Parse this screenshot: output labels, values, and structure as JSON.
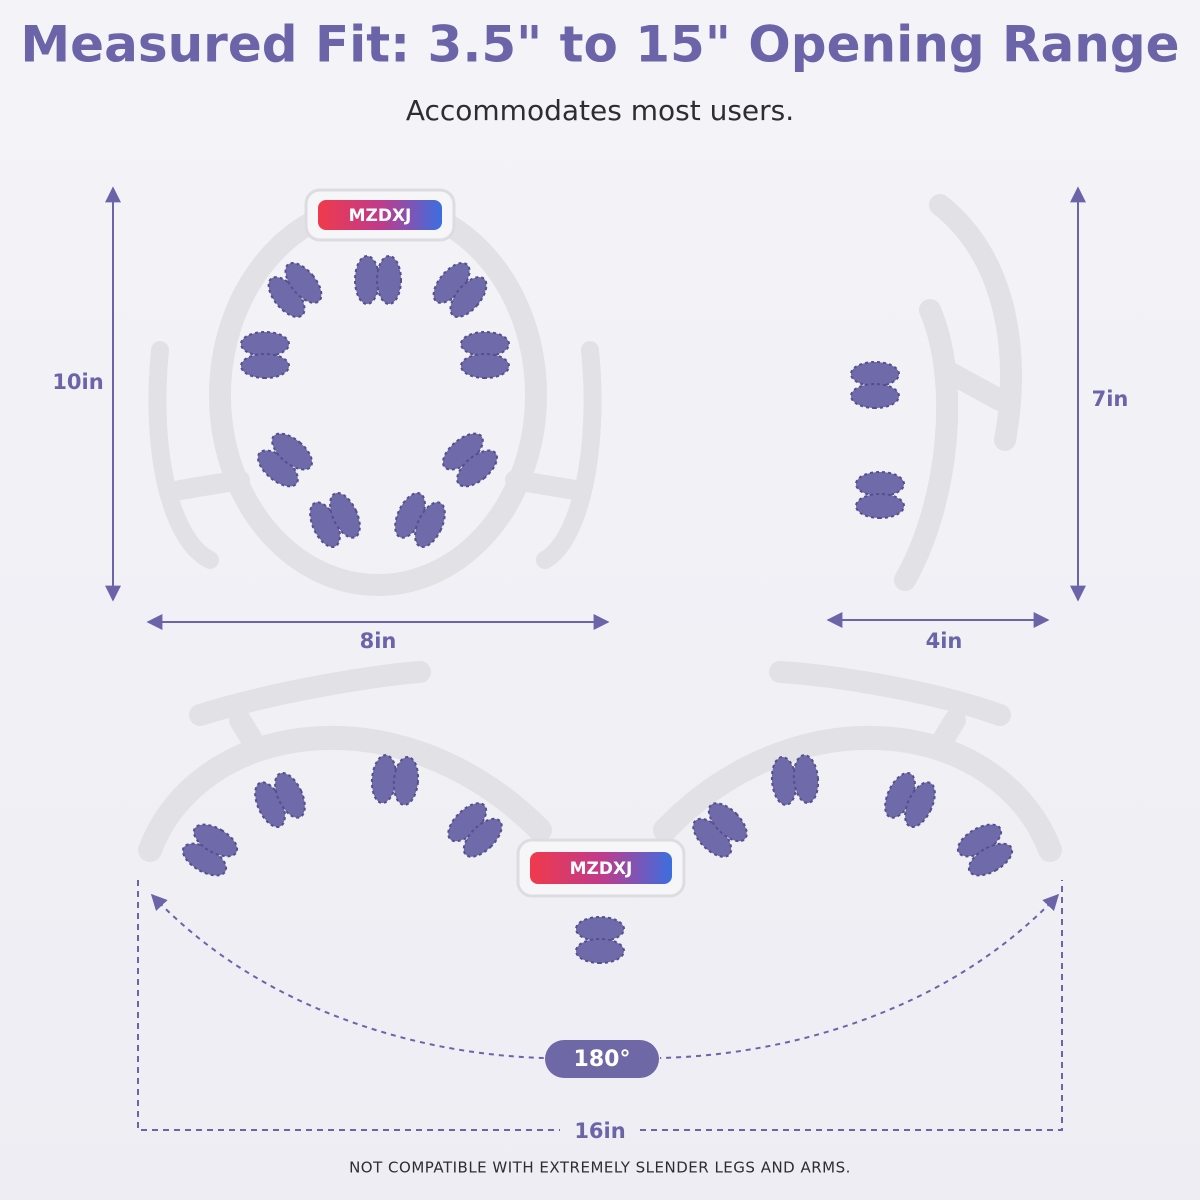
{
  "header": {
    "title": "Measured Fit: 3.5\" to 15\" Opening Range",
    "subtitle": "Accommodates most users."
  },
  "views": [
    {
      "brand": "MZDXJ",
      "height": "10in",
      "width": "8in"
    },
    {
      "height": "7in",
      "width": "4in"
    },
    {
      "brand": "MZDXJ",
      "angle": "180°",
      "width": "16in"
    }
  ],
  "footnote": "NOT COMPATIBLE WITH EXTREMELY SLENDER LEGS AND ARMS."
}
